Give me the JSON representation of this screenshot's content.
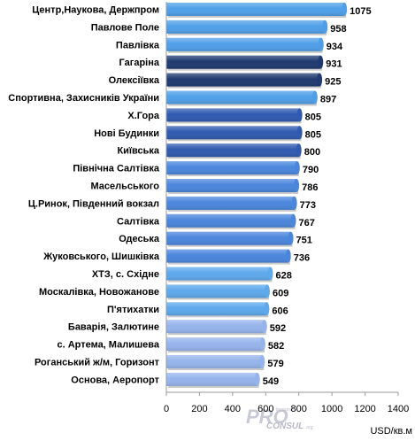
{
  "chart_data": {
    "type": "bar",
    "orientation": "horizontal",
    "categories": [
      "Центр,Наукова,  Держпром",
      "Павлове Поле",
      "Павлівка",
      "Гагаріна",
      "Олексіївка",
      "Спортивна, Захисників  України",
      "Х.Гора",
      "Нові Будинки",
      "Київська",
      "Північна Салтівка",
      "Масельського",
      "Ц.Ринок, Південний вокзал",
      "Салтівка",
      "Одеська",
      "Жуковського,  Шишківка",
      "ХТЗ, с. Східне",
      "Москалівка,  Новожанове",
      "П'ятихатки",
      "Баварія, Залютине",
      "с. Артема, Малишева",
      "Роганський ж/м, Горизонт",
      "Основа, Аеропорт"
    ],
    "values": [
      1075,
      958,
      934,
      931,
      925,
      897,
      805,
      805,
      800,
      790,
      786,
      773,
      767,
      751,
      736,
      628,
      609,
      606,
      592,
      582,
      579,
      549
    ],
    "bar_colors": [
      "#4f9fe8",
      "#4f9fe8",
      "#4f9fe8",
      "#1f3a70",
      "#1f3a70",
      "#4f9fe8",
      "#2f5aaf",
      "#2f5aaf",
      "#2f5aaf",
      "#4a86dc",
      "#4a86dc",
      "#4a86dc",
      "#4a86dc",
      "#4a86dc",
      "#4a86dc",
      "#5ea8ec",
      "#5ea8ec",
      "#5ea8ec",
      "#96b4ec",
      "#96b4ec",
      "#96b4ec",
      "#96b4ec"
    ],
    "xlim": [
      0,
      1400
    ],
    "x_ticks": [
      "0",
      "200",
      "400",
      "600",
      "800",
      "1000",
      "1200",
      "1400"
    ],
    "unit_label": "USD/кв.м",
    "grid": false
  },
  "watermark": {
    "main": "PRO",
    "sub": "CONSUL",
    "tiny": "fessional",
    "domain": ".org"
  }
}
